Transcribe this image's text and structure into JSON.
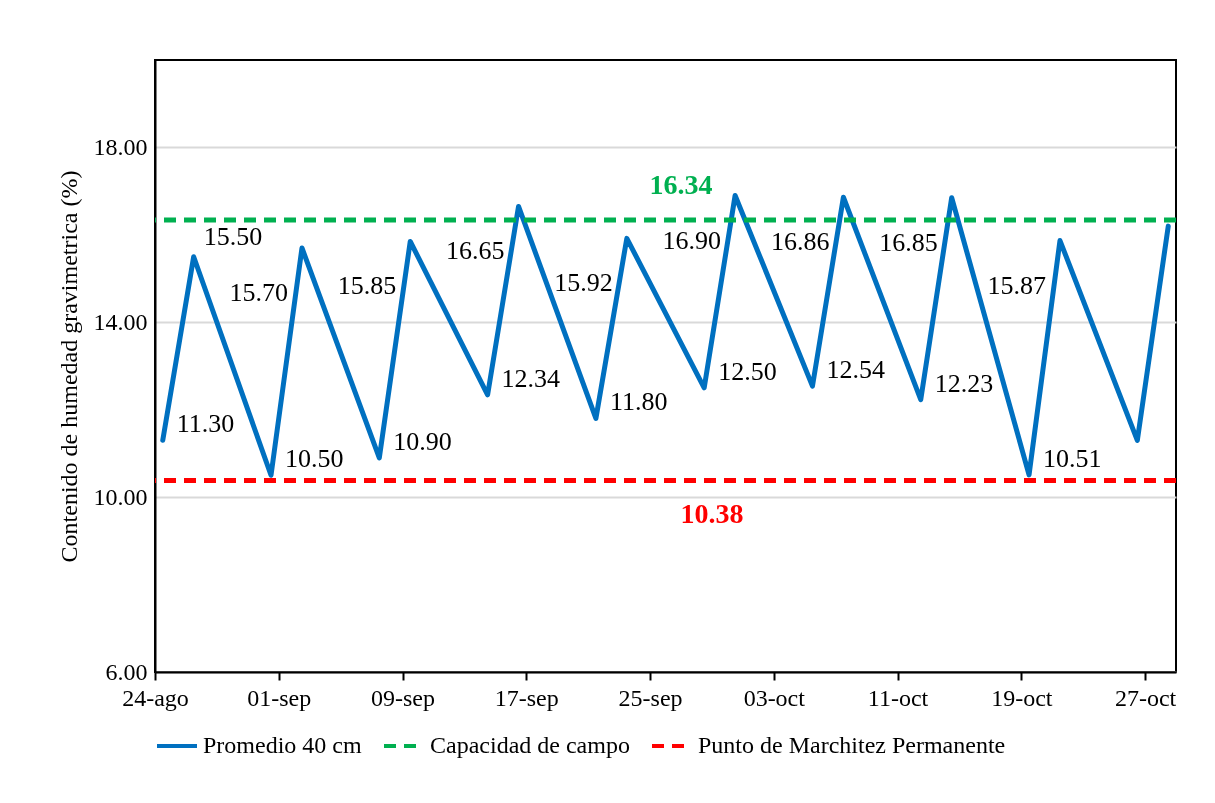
{
  "chart_data": {
    "type": "line",
    "ylabel": "Contenido de humedad gravimetrica (%)",
    "x": [
      "--08-24T12:00",
      "--08-26T12:00",
      "--08-31T12:00",
      "--09-02T12:00",
      "--09-07T12:00",
      "--09-09T12:00",
      "--09-14T12:00",
      "--09-16T12:00",
      "--09-21T12:00",
      "--09-23T12:00",
      "--09-28T12:00",
      "--09-30T12:00",
      "--10-05T12:00",
      "--10-07T12:00",
      "--10-12T12:00",
      "--10-14T12:00",
      "--10-19T12:00",
      "--10-21T12:00",
      "--10-26T12:00",
      "--10-28T12:00"
    ],
    "series": [
      {
        "name": "Promedio 40 cm",
        "color": "#0070c0",
        "line_style": "solid",
        "values": [
          11.3,
          15.5,
          10.5,
          15.7,
          10.9,
          15.85,
          12.34,
          16.65,
          11.8,
          15.92,
          12.5,
          16.9,
          12.54,
          16.86,
          12.23,
          16.85,
          10.51,
          15.87,
          11.3,
          16.2
        ],
        "value_labels": [
          "11.30",
          "15.50",
          "10.50",
          "15.70",
          "10.90",
          "15.85",
          "12.34",
          "16.65",
          "11.80",
          "15.92",
          "12.50",
          "16.90",
          "12.54",
          "16.86",
          "12.23",
          "16.85",
          "10.51",
          "15.87",
          null,
          null
        ]
      }
    ],
    "ref_lines": [
      {
        "axis": "y",
        "value": 16.34,
        "label": "Capacidad de campo",
        "color": "#00b050",
        "line_style": "dashed"
      },
      {
        "axis": "y",
        "value": 10.38,
        "label": "Punto de Marchitez Permanente",
        "color": "#ff0000",
        "line_style": "dashed"
      }
    ],
    "annotations": [
      {
        "text": "16.34",
        "x": "--09-27",
        "y": 16.34
      },
      {
        "text": "10.38",
        "x": "--09-29",
        "y": 10.38
      }
    ],
    "xlim": [
      "--08-24",
      "--10-29"
    ],
    "xticks": [
      {
        "value": "--08-24",
        "label": "24-ago"
      },
      {
        "value": "--09-01",
        "label": "01-sep"
      },
      {
        "value": "--09-09",
        "label": "09-sep"
      },
      {
        "value": "--09-17",
        "label": "17-sep"
      },
      {
        "value": "--09-25",
        "label": "25-sep"
      },
      {
        "value": "--10-03",
        "label": "03-oct"
      },
      {
        "value": "--10-11",
        "label": "11-oct"
      },
      {
        "value": "--10-19",
        "label": "19-oct"
      },
      {
        "value": "--10-27",
        "label": "27-oct"
      }
    ],
    "ylim": [
      6,
      20
    ],
    "yticks": [
      {
        "value": 6,
        "label": "6.00"
      },
      {
        "value": 10,
        "label": "10.00"
      },
      {
        "value": 14,
        "label": "14.00"
      },
      {
        "value": 18,
        "label": "18.00"
      }
    ],
    "grid": "y",
    "legend": "bottom"
  }
}
